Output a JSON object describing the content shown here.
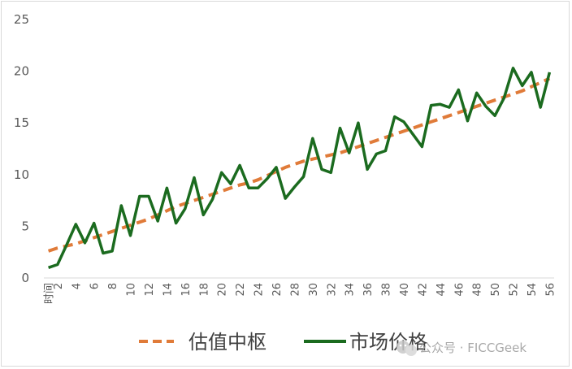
{
  "chart_data": {
    "type": "line",
    "title": "",
    "xlabel": "",
    "ylabel": "",
    "x_first_label": "时间",
    "x": [
      1,
      2,
      3,
      4,
      5,
      6,
      7,
      8,
      9,
      10,
      11,
      12,
      13,
      14,
      15,
      16,
      17,
      18,
      19,
      20,
      21,
      22,
      23,
      24,
      25,
      26,
      27,
      28,
      29,
      30,
      31,
      32,
      33,
      34,
      35,
      36,
      37,
      38,
      39,
      40,
      41,
      42,
      43,
      44,
      45,
      46,
      47,
      48,
      49,
      50,
      51,
      52,
      53,
      54,
      55,
      56
    ],
    "x_tick_labels": [
      "时间",
      "2",
      "4",
      "6",
      "8",
      "10",
      "12",
      "14",
      "16",
      "18",
      "20",
      "22",
      "24",
      "26",
      "28",
      "30",
      "32",
      "34",
      "36",
      "38",
      "40",
      "42",
      "44",
      "46",
      "48",
      "50",
      "52",
      "54",
      "56"
    ],
    "ylim": [
      0,
      25
    ],
    "y_ticks": [
      0,
      5,
      10,
      15,
      20,
      25
    ],
    "grid": false,
    "legend_position": "bottom",
    "series": [
      {
        "name": "估值中枢",
        "style": "dashed",
        "color": "#e07b39",
        "values": [
          2.6,
          2.9,
          3.1,
          3.3,
          3.6,
          3.9,
          4.2,
          4.5,
          4.8,
          5.1,
          5.4,
          5.7,
          6.1,
          6.5,
          6.9,
          7.2,
          7.5,
          7.8,
          8.1,
          8.4,
          8.7,
          9.0,
          9.2,
          9.5,
          9.9,
          10.3,
          10.7,
          11.0,
          11.3,
          11.5,
          11.7,
          11.9,
          12.1,
          12.4,
          12.7,
          13.0,
          13.3,
          13.6,
          13.9,
          14.2,
          14.5,
          14.8,
          15.1,
          15.4,
          15.7,
          16.0,
          16.3,
          16.6,
          16.9,
          17.2,
          17.5,
          17.8,
          18.1,
          18.5,
          18.9,
          19.3
        ]
      },
      {
        "name": "市场价格",
        "style": "solid",
        "color": "#1b6b1f",
        "values": [
          1.0,
          1.3,
          3.2,
          5.2,
          3.4,
          5.3,
          2.4,
          2.6,
          7.0,
          4.1,
          7.9,
          7.9,
          5.5,
          8.7,
          5.3,
          6.7,
          9.7,
          6.1,
          7.6,
          10.2,
          9.1,
          10.9,
          8.7,
          8.7,
          9.6,
          10.7,
          7.7,
          8.8,
          9.8,
          13.5,
          10.5,
          10.2,
          14.5,
          12.1,
          15.0,
          10.5,
          12.0,
          12.3,
          15.6,
          15.1,
          13.9,
          12.7,
          16.7,
          16.8,
          16.5,
          18.2,
          15.2,
          17.9,
          16.6,
          15.7,
          17.4,
          20.3,
          18.6,
          19.9,
          16.5,
          19.9
        ]
      }
    ]
  },
  "watermark": {
    "text": "公众号 · FICCGeek",
    "icon": "wechat-icon"
  }
}
